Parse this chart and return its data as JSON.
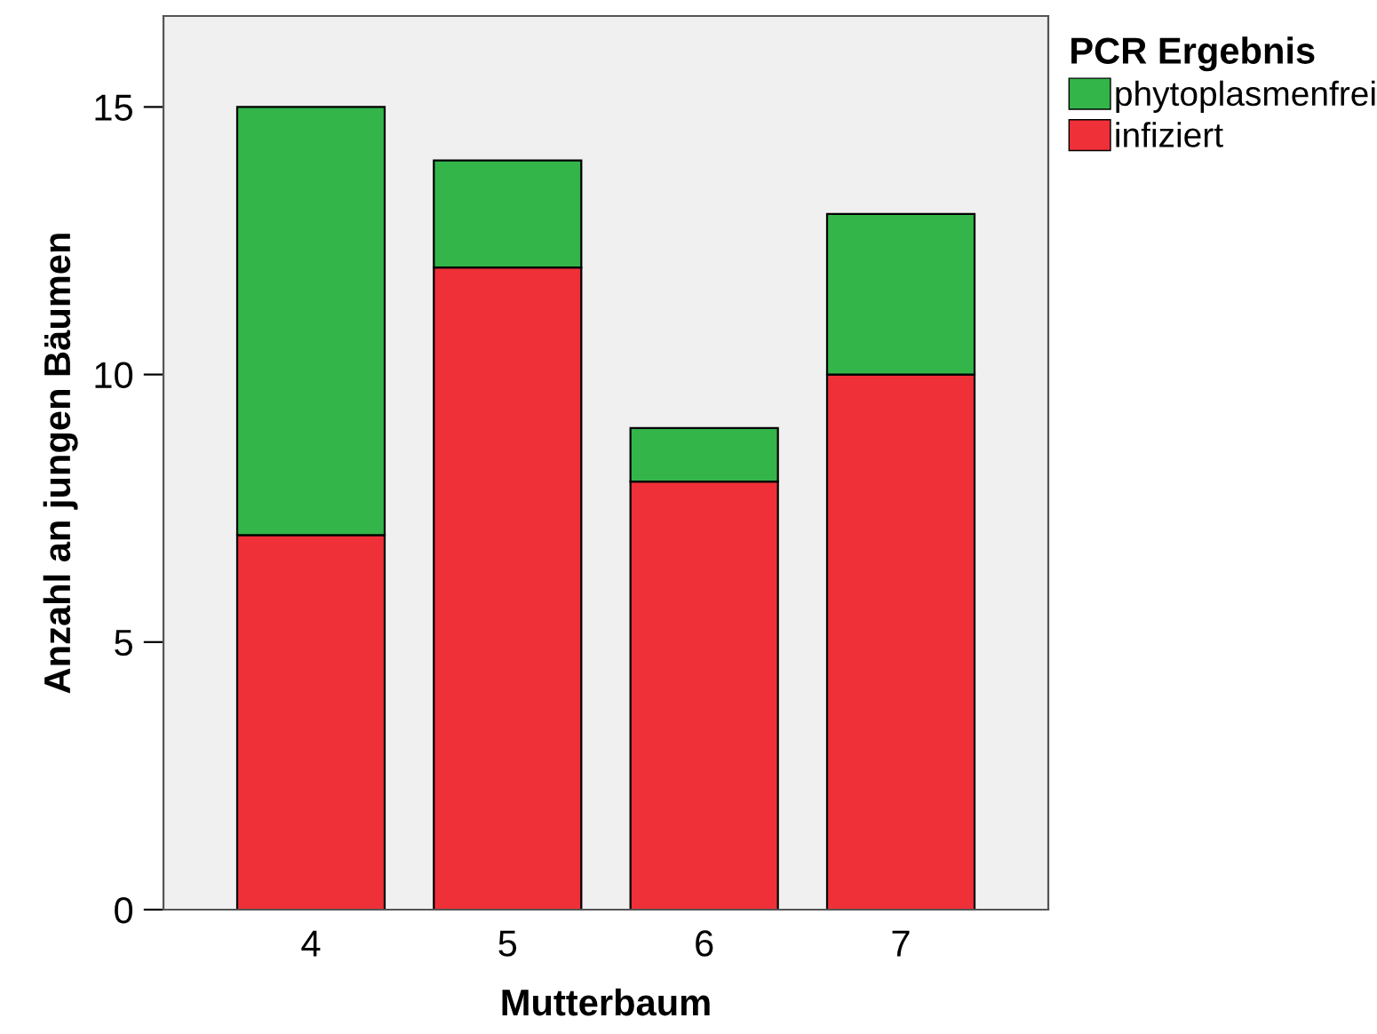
{
  "chart_data": {
    "type": "bar",
    "stacked": true,
    "xlabel": "Mutterbaum",
    "ylabel": "Anzahl an jungen Bäumen",
    "legend_title": "PCR Ergebnis",
    "categories": [
      "4",
      "5",
      "6",
      "7"
    ],
    "series": [
      {
        "name": "infiziert",
        "color": "#ef3038",
        "values": [
          7,
          12,
          8,
          10
        ]
      },
      {
        "name": "phytoplasmenfrei",
        "color": "#33b54a",
        "values": [
          8,
          2,
          1,
          3
        ]
      }
    ],
    "ylim": [
      0,
      16.7
    ],
    "yticks": [
      0,
      5,
      10,
      15
    ],
    "grid": false,
    "legend": "top right"
  }
}
